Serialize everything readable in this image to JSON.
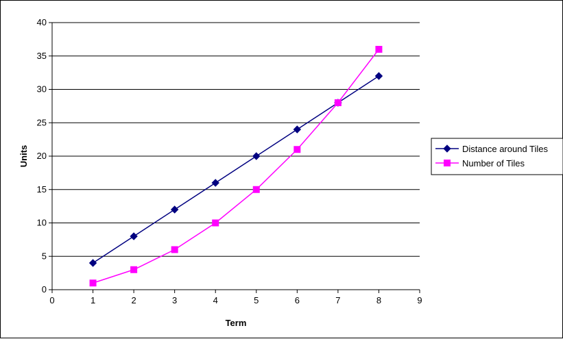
{
  "chart_data": {
    "type": "line",
    "title": "",
    "xlabel": "Term",
    "ylabel": "Units",
    "xlim": [
      0,
      9
    ],
    "ylim": [
      0,
      40
    ],
    "x_ticks": [
      0,
      1,
      2,
      3,
      4,
      5,
      6,
      7,
      8,
      9
    ],
    "y_ticks": [
      0,
      5,
      10,
      15,
      20,
      25,
      30,
      35,
      40
    ],
    "x_tick_labels": [
      "0",
      "1",
      "2",
      "3",
      "4",
      "5",
      "6",
      "7",
      "8",
      "9"
    ],
    "y_tick_labels": [
      "0",
      "5",
      "10",
      "15",
      "20",
      "25",
      "30",
      "35",
      "40"
    ],
    "grid": "horizontal major gridlines",
    "legend_position": "right",
    "series": [
      {
        "name": "Distance around Tiles",
        "color": "#000080",
        "marker": "diamond",
        "x": [
          1,
          2,
          3,
          4,
          5,
          6,
          7,
          8
        ],
        "y": [
          4,
          8,
          12,
          16,
          20,
          24,
          28,
          32
        ]
      },
      {
        "name": "Number of Tiles",
        "color": "#FF00FF",
        "marker": "square",
        "x": [
          1,
          2,
          3,
          4,
          5,
          6,
          7,
          8
        ],
        "y": [
          1,
          3,
          6,
          10,
          15,
          21,
          28,
          36
        ]
      }
    ]
  }
}
